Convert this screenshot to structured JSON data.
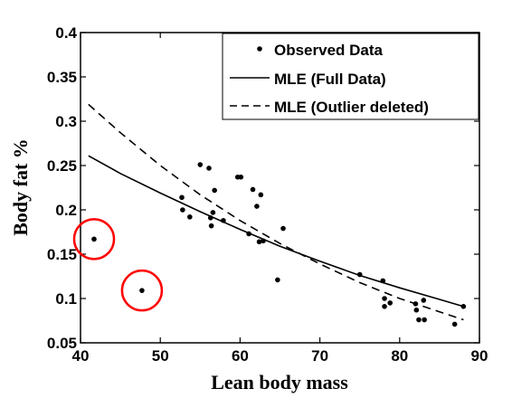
{
  "chart_data": {
    "type": "scatter",
    "title": "",
    "xlabel": "Lean body mass",
    "ylabel": "Body fat %",
    "xlim": [
      40,
      90
    ],
    "ylim": [
      0.05,
      0.4
    ],
    "xticks": [
      "40",
      "50",
      "60",
      "70",
      "80",
      "90"
    ],
    "yticks": [
      "0.05",
      "0.1",
      "0.15",
      "0.2",
      "0.25",
      "0.3",
      "0.35",
      "0.4"
    ],
    "grid": false,
    "legend_position": "top-right",
    "series": [
      {
        "name": "Observed Data",
        "kind": "points",
        "x": [
          41.7,
          47.7,
          52.7,
          52.8,
          53.7,
          55.0,
          56.1,
          56.3,
          56.4,
          56.6,
          56.8,
          57.9,
          59.7,
          60.1,
          61.1,
          61.6,
          62.1,
          62.4,
          62.6,
          62.9,
          64.7,
          65.4,
          75.0,
          77.9,
          78.1,
          78.1,
          78.8,
          82.0,
          82.1,
          82.4,
          83.0,
          83.1,
          86.9,
          88.0
        ],
        "y": [
          0.167,
          0.109,
          0.214,
          0.2,
          0.192,
          0.251,
          0.247,
          0.191,
          0.182,
          0.197,
          0.222,
          0.188,
          0.237,
          0.237,
          0.173,
          0.223,
          0.204,
          0.164,
          0.217,
          0.165,
          0.121,
          0.179,
          0.127,
          0.12,
          0.1,
          0.091,
          0.095,
          0.094,
          0.087,
          0.076,
          0.098,
          0.076,
          0.071,
          0.091
        ]
      },
      {
        "name": "MLE (Full Data)",
        "kind": "solid-line",
        "x": [
          41,
          45,
          50,
          55,
          60,
          65,
          70,
          75,
          80,
          85,
          88
        ],
        "y": [
          0.261,
          0.241,
          0.219,
          0.198,
          0.178,
          0.159,
          0.142,
          0.126,
          0.112,
          0.099,
          0.091
        ]
      },
      {
        "name": "MLE (Outlier deleted)",
        "kind": "dashed-line",
        "x": [
          41,
          45,
          50,
          55,
          60,
          65,
          70,
          75,
          80,
          85,
          88
        ],
        "y": [
          0.319,
          0.287,
          0.25,
          0.217,
          0.188,
          0.162,
          0.139,
          0.118,
          0.1,
          0.085,
          0.076
        ]
      }
    ],
    "annotations": [
      {
        "type": "circle",
        "x": 41.7,
        "y": 0.167,
        "color": "#ff0000"
      },
      {
        "type": "circle",
        "x": 47.7,
        "y": 0.109,
        "color": "#ff0000"
      }
    ]
  },
  "colors": {
    "points": "#000000",
    "lines": "#000000",
    "highlight": "#ff0000"
  }
}
